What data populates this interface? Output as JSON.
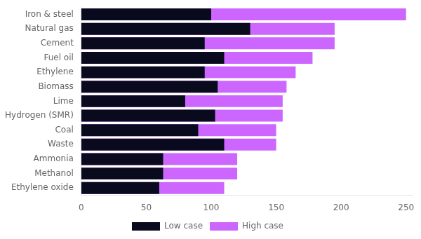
{
  "chart_data": {
    "type": "bar",
    "orientation": "horizontal",
    "categories": [
      "Iron & steel",
      "Natural gas",
      "Cement",
      "Fuel oil",
      "Ethylene",
      "Biomass",
      "Lime",
      "Hydrogen (SMR)",
      "Coal",
      "Waste",
      "Ammonia",
      "Methanol",
      "Ethylene oxide"
    ],
    "series": [
      {
        "name": "Low case",
        "color": "#0a0a1e",
        "values": [
          100,
          130,
          95,
          110,
          95,
          105,
          80,
          103,
          90,
          110,
          63,
          63,
          60
        ]
      },
      {
        "name": "High case",
        "color": "#cc66ff",
        "values": [
          250,
          195,
          195,
          178,
          165,
          158,
          155,
          155,
          150,
          150,
          120,
          120,
          110
        ]
      }
    ],
    "xlim": [
      0,
      255
    ],
    "xticks": [
      0,
      50,
      100,
      150,
      200,
      250
    ],
    "grid": false,
    "legend": "bottom"
  }
}
